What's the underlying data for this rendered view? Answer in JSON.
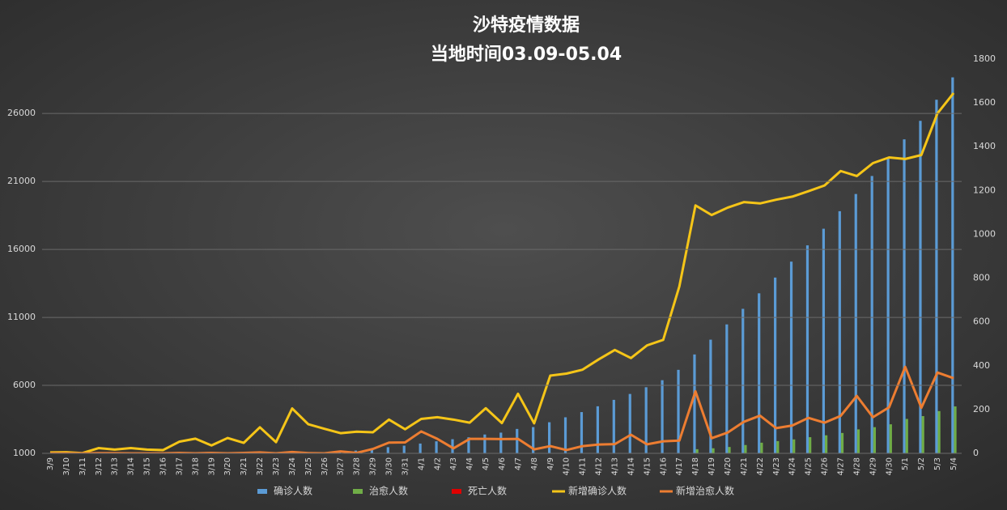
{
  "chart_data": {
    "type": "bar",
    "title": "沙特疫情数据",
    "subtitle": "当地时间03.09-05.04",
    "categories": [
      "3/9",
      "3/10",
      "3/11",
      "3/12",
      "3/13",
      "3/14",
      "3/15",
      "3/16",
      "3/17",
      "3/18",
      "3/19",
      "3/20",
      "3/21",
      "3/22",
      "3/23",
      "3/24",
      "3/25",
      "3/26",
      "3/27",
      "3/28",
      "3/29",
      "3/30",
      "3/31",
      "4/1",
      "4/2",
      "4/3",
      "4/4",
      "4/5",
      "4/6",
      "4/7",
      "4/8",
      "4/9",
      "4/10",
      "4/11",
      "4/12",
      "4/13",
      "4/14",
      "4/15",
      "4/16",
      "4/17",
      "4/18",
      "4/19",
      "4/20",
      "4/21",
      "4/22",
      "4/23",
      "4/24",
      "4/25",
      "4/26",
      "4/27",
      "4/28",
      "4/29",
      "4/30",
      "5/1",
      "5/2",
      "5/3",
      "5/4"
    ],
    "ylim": [
      1000,
      30000
    ],
    "yticks": [
      1000,
      6000,
      11000,
      16000,
      21000,
      26000
    ],
    "y2lim": [
      0,
      1800
    ],
    "y2ticks": [
      0,
      200,
      400,
      600,
      800,
      1000,
      1200,
      1400,
      1600,
      1800
    ],
    "grid": true,
    "legend": "bottom",
    "series": [
      {
        "name": "确诊人数",
        "type": "bar",
        "color": "#5b9bd5",
        "values": [
          15,
          20,
          21,
          45,
          62,
          86,
          103,
          118,
          171,
          238,
          274,
          344,
          392,
          511,
          562,
          767,
          900,
          1012,
          1104,
          1203,
          1299,
          1453,
          1563,
          1720,
          1885,
          2039,
          2179,
          2385,
          2523,
          2795,
          2932,
          3287,
          3651,
          4033,
          4462,
          4934,
          5369,
          5862,
          6380,
          7142,
          8274,
          9362,
          10484,
          11631,
          12772,
          13930,
          15102,
          16299,
          17522,
          18811,
          20077,
          21402,
          22753,
          24097,
          25459,
          27011,
          28656
        ]
      },
      {
        "name": "治愈人数",
        "type": "bar",
        "color": "#70ad47",
        "values": [
          0,
          0,
          0,
          1,
          2,
          2,
          2,
          2,
          4,
          4,
          6,
          6,
          8,
          12,
          12,
          18,
          19,
          19,
          28,
          30,
          50,
          99,
          149,
          249,
          315,
          338,
          404,
          470,
          535,
          601,
          619,
          652,
          667,
          700,
          740,
          782,
          867,
          908,
          963,
          1021,
          1304,
          1373,
          1468,
          1612,
          1784,
          1899,
          2026,
          2188,
          2328,
          2499,
          2761,
          2926,
          3136,
          3531,
          3739,
          4108,
          4451
        ]
      },
      {
        "name": "死亡人数",
        "type": "bar",
        "color": "#e00000",
        "values": [
          0,
          0,
          0,
          0,
          0,
          0,
          0,
          0,
          0,
          0,
          0,
          0,
          0,
          0,
          0,
          1,
          3,
          4,
          4,
          4,
          8,
          8,
          10,
          16,
          21,
          25,
          29,
          29,
          34,
          38,
          41,
          44,
          47,
          52,
          59,
          65,
          73,
          79,
          83,
          87,
          92,
          97,
          103,
          109,
          114,
          121,
          127,
          136,
          139,
          144,
          152,
          157,
          162,
          169,
          176,
          184,
          191
        ]
      },
      {
        "name": "新增确诊人数",
        "type": "line",
        "axis": "y2",
        "color": "#f5c518",
        "values": [
          4,
          5,
          1,
          24,
          17,
          24,
          17,
          15,
          53,
          67,
          36,
          70,
          48,
          119,
          51,
          205,
          133,
          112,
          92,
          99,
          96,
          154,
          110,
          157,
          165,
          154,
          140,
          206,
          138,
          272,
          137,
          355,
          364,
          382,
          429,
          472,
          435,
          493,
          518,
          762,
          1132,
          1088,
          1122,
          1147,
          1141,
          1158,
          1172,
          1197,
          1223,
          1289,
          1266,
          1325,
          1351,
          1344,
          1362,
          1552,
          1645
        ]
      },
      {
        "name": "新增治愈人数",
        "type": "line",
        "axis": "y2",
        "color": "#ed7d31",
        "values": [
          0,
          0,
          0,
          1,
          1,
          0,
          0,
          0,
          2,
          0,
          2,
          0,
          2,
          4,
          0,
          6,
          1,
          0,
          9,
          2,
          20,
          49,
          50,
          100,
          66,
          23,
          66,
          66,
          65,
          66,
          18,
          33,
          15,
          33,
          40,
          42,
          85,
          41,
          55,
          58,
          283,
          69,
          95,
          144,
          172,
          115,
          127,
          162,
          140,
          171,
          262,
          165,
          210,
          395,
          208,
          369,
          343
        ]
      }
    ]
  }
}
